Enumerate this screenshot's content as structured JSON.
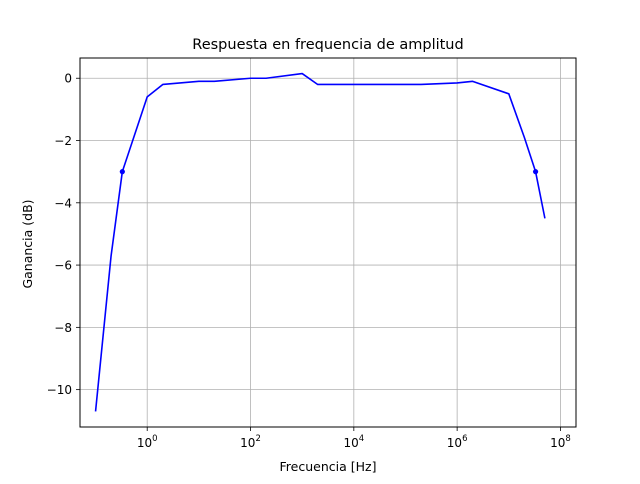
{
  "chart_data": {
    "type": "line",
    "title": "Respuesta en frequencia de amplitud",
    "xlabel": "Frecuencia [Hz]",
    "ylabel": "Ganancia (dB)",
    "xscale": "log",
    "xlim": [
      0.05,
      200000000
    ],
    "ylim": [
      -11.2,
      0.65
    ],
    "grid": true,
    "x_ticks": [
      {
        "value": 1,
        "base": "10",
        "exp": "0"
      },
      {
        "value": 100,
        "base": "10",
        "exp": "2"
      },
      {
        "value": 10000,
        "base": "10",
        "exp": "4"
      },
      {
        "value": 1000000,
        "base": "10",
        "exp": "6"
      },
      {
        "value": 100000000,
        "base": "10",
        "exp": "8"
      }
    ],
    "y_ticks": [
      {
        "value": 0,
        "label": "0"
      },
      {
        "value": -2,
        "label": "−2"
      },
      {
        "value": -4,
        "label": "−4"
      },
      {
        "value": -6,
        "label": "−6"
      },
      {
        "value": -8,
        "label": "−8"
      },
      {
        "value": -10,
        "label": "−10"
      }
    ],
    "series": [
      {
        "color": "#0000ff",
        "x": [
          0.1,
          0.2,
          0.33,
          1,
          2,
          10,
          20,
          100,
          200,
          1000,
          2000,
          10000,
          200000,
          1000000,
          2000000,
          10000000,
          20000000,
          33000000,
          50000000
        ],
        "y": [
          -10.7,
          -5.7,
          -3.0,
          -0.6,
          -0.2,
          -0.1,
          -0.1,
          0.0,
          0.0,
          0.15,
          -0.2,
          -0.2,
          -0.2,
          -0.15,
          -0.1,
          -0.5,
          -1.9,
          -3.0,
          -4.5
        ]
      }
    ],
    "markers": {
      "color": "#0000ff",
      "points": [
        {
          "x": 0.33,
          "y": -3.0
        },
        {
          "x": 33000000,
          "y": -3.0
        }
      ]
    }
  }
}
